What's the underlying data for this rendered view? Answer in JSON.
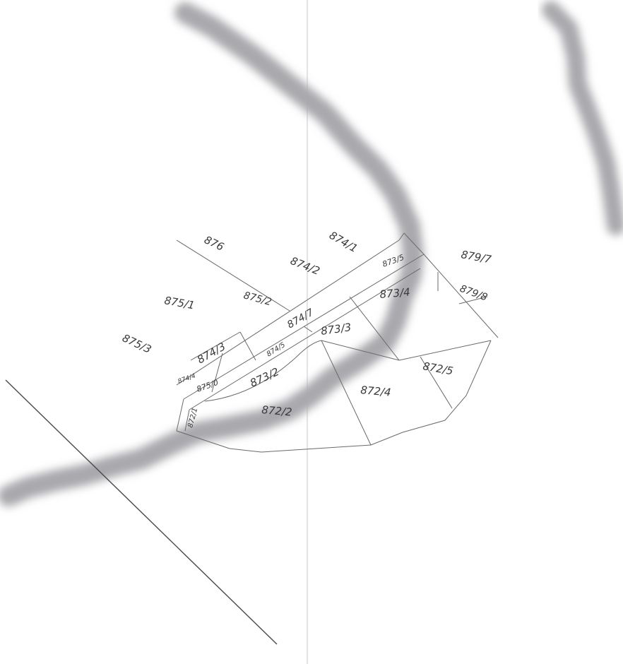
{
  "map": {
    "parcels": [
      {
        "id": "p876",
        "label": "876"
      },
      {
        "id": "p874-1",
        "label": "874/1"
      },
      {
        "id": "p874-2",
        "label": "874/2"
      },
      {
        "id": "p873-5",
        "label": "873/5"
      },
      {
        "id": "p879-7",
        "label": "879/7"
      },
      {
        "id": "p875-1",
        "label": "875/1"
      },
      {
        "id": "p875-2",
        "label": "875/2"
      },
      {
        "id": "p874-7",
        "label": "874/7"
      },
      {
        "id": "p873-4",
        "label": "873/4"
      },
      {
        "id": "p879-8",
        "label": "879/8"
      },
      {
        "id": "p875-3",
        "label": "875/3"
      },
      {
        "id": "p874-3",
        "label": "874/3"
      },
      {
        "id": "p874-5",
        "label": "874/5"
      },
      {
        "id": "p873-3",
        "label": "873/3"
      },
      {
        "id": "p872-5",
        "label": "872/5"
      },
      {
        "id": "p874-4",
        "label": "874/4"
      },
      {
        "id": "p875-0",
        "label": "875/0"
      },
      {
        "id": "p873-2",
        "label": "873/2"
      },
      {
        "id": "p872-4",
        "label": "872/4"
      },
      {
        "id": "p872-1",
        "label": "872/1"
      },
      {
        "id": "p872-2",
        "label": "872/2"
      }
    ],
    "colors": {
      "background": "#ffffff",
      "boundary_line": "#6a6a6a",
      "road_blur": "#a9a9ad",
      "label_text": "#3a3a3a"
    }
  }
}
